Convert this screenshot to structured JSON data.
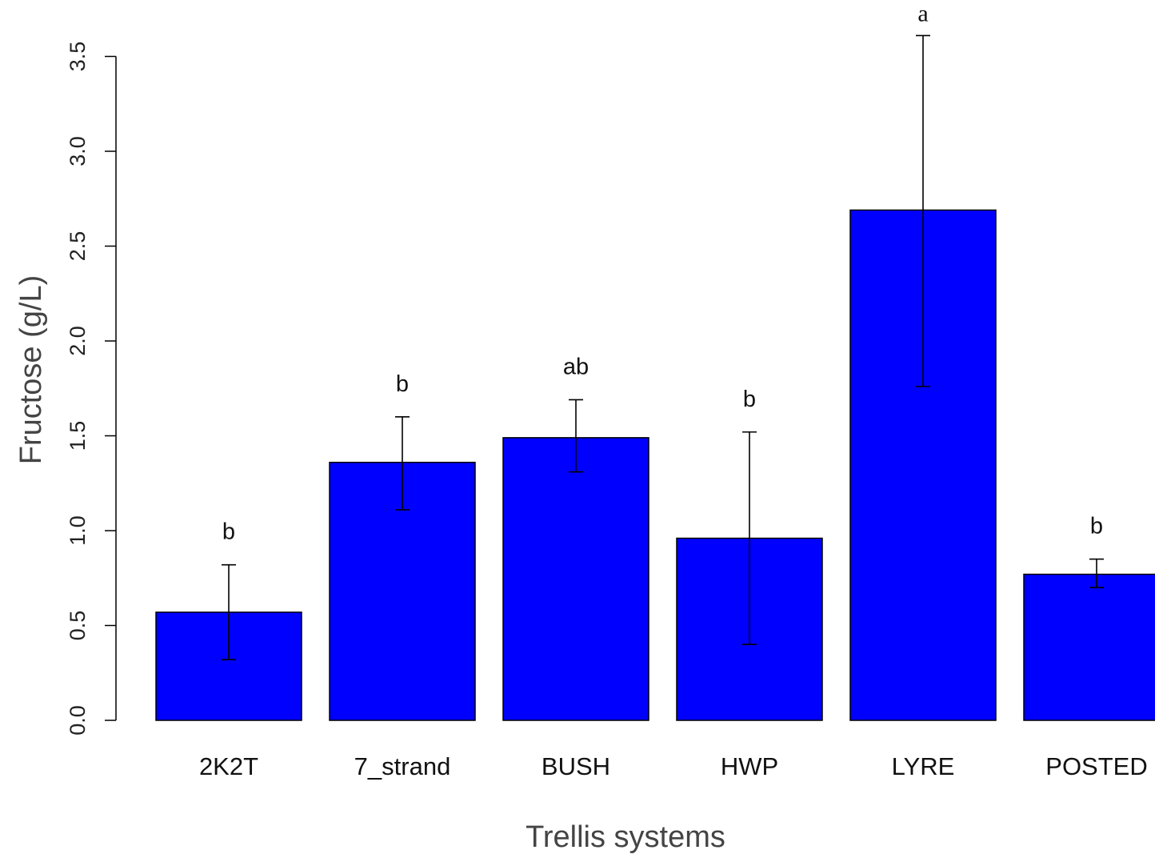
{
  "chart_data": {
    "type": "bar",
    "title": "",
    "xlabel": "Trellis systems",
    "ylabel": "Fructose (g/L)",
    "ylim": [
      0,
      3.5
    ],
    "yticks": [
      "0.0",
      "0.5",
      "1.0",
      "1.5",
      "2.0",
      "2.5",
      "3.0",
      "3.5"
    ],
    "categories": [
      "2K2T",
      "7_strand",
      "BUSH",
      "HWP",
      "LYRE",
      "POSTED"
    ],
    "values": [
      0.57,
      1.36,
      1.49,
      0.96,
      2.69,
      0.77
    ],
    "error_low": [
      0.32,
      1.11,
      1.31,
      0.4,
      1.76,
      0.7
    ],
    "error_high": [
      0.82,
      1.6,
      1.69,
      1.52,
      3.61,
      0.85
    ],
    "significance": [
      "b",
      "b",
      "ab",
      "b",
      "a",
      "b"
    ],
    "grid": false,
    "colors": {
      "bar": "#0000ff",
      "bar_edge": "#000000",
      "axis": "#000000",
      "error_bar": "#000000"
    }
  }
}
